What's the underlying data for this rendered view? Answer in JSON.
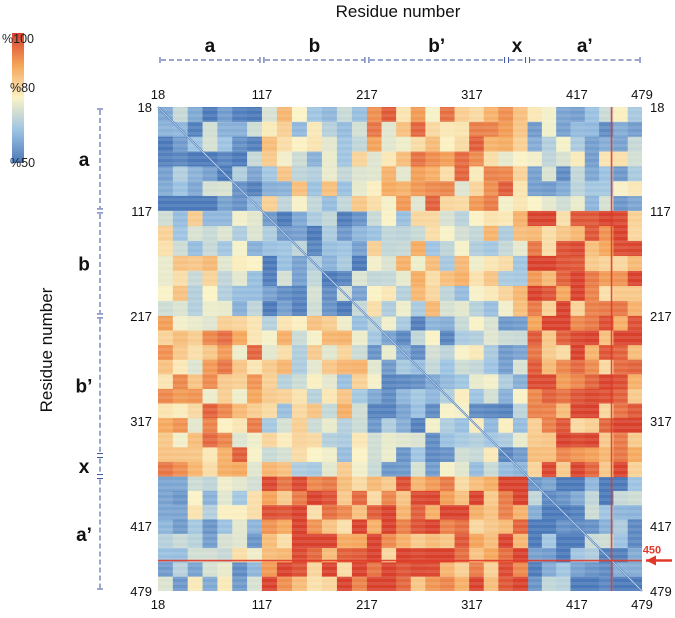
{
  "chart_data": {
    "type": "heatmap",
    "xlabel": "Residue number",
    "ylabel": "Residue number",
    "residue_range": [
      18,
      479
    ],
    "ticks": [
      18,
      117,
      217,
      317,
      417,
      479
    ],
    "colorbar": {
      "labels": [
        "%100",
        "%80",
        "%50"
      ],
      "values": [
        100,
        80,
        50
      ],
      "range": [
        50,
        100
      ],
      "colors": [
        "#d8402c",
        "#f5a65a",
        "#faf3c6",
        "#9dc3e2",
        "#4a78b8"
      ]
    },
    "domains": [
      {
        "label": "a",
        "start": 18,
        "end": 117,
        "color": "#111111"
      },
      {
        "label": "b",
        "start": 117,
        "end": 217,
        "color": "#111111"
      },
      {
        "label": "b’",
        "start": 217,
        "end": 350,
        "color": "#111111"
      },
      {
        "label": "x",
        "start": 350,
        "end": 370,
        "color": "#c0392b"
      },
      {
        "label": "a’",
        "start": 370,
        "end": 479,
        "color": "#111111"
      }
    ],
    "annotation": {
      "label": "450",
      "residue": 450,
      "color": "#e23a2a"
    },
    "blocks": [
      {
        "x": [
          18,
          117
        ],
        "y": [
          18,
          117
        ],
        "value": 58
      },
      {
        "x": [
          117,
          217
        ],
        "y": [
          117,
          217
        ],
        "value": 58
      },
      {
        "x": [
          217,
          370
        ],
        "y": [
          217,
          370
        ],
        "value": 64
      },
      {
        "x": [
          370,
          479
        ],
        "y": [
          370,
          479
        ],
        "value": 57
      },
      {
        "x": [
          18,
          117
        ],
        "y": [
          117,
          217
        ],
        "value": 72
      },
      {
        "x": [
          18,
          117
        ],
        "y": [
          217,
          370
        ],
        "value": 84
      },
      {
        "x": [
          18,
          117
        ],
        "y": [
          370,
          479
        ],
        "value": 66
      },
      {
        "x": [
          117,
          217
        ],
        "y": [
          217,
          370
        ],
        "value": 74
      },
      {
        "x": [
          117,
          217
        ],
        "y": [
          370,
          479
        ],
        "value": 91
      },
      {
        "x": [
          217,
          370
        ],
        "y": [
          370,
          479
        ],
        "value": 92
      }
    ]
  }
}
